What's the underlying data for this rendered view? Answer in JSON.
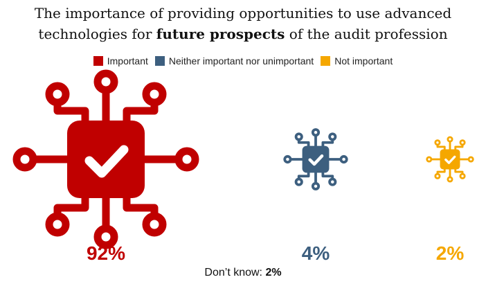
{
  "title": {
    "line1": "The importance of providing opportunities to use advanced",
    "line2_pre": "technologies for ",
    "line2_bold": "future prospects",
    "line2_post": " of the audit profession"
  },
  "chart_data": {
    "type": "pictogram",
    "categories": [
      "Important",
      "Neither important nor unimportant",
      "Not important"
    ],
    "values": [
      92,
      4,
      2
    ],
    "value_labels": [
      "92%",
      "4%",
      "2%"
    ],
    "colors": [
      "#c00000",
      "#3d5f7f",
      "#f5a700"
    ],
    "icon": "circuit-chip-check-icon",
    "dont_know_label": "Don’t know: ",
    "dont_know_value": "2%"
  }
}
